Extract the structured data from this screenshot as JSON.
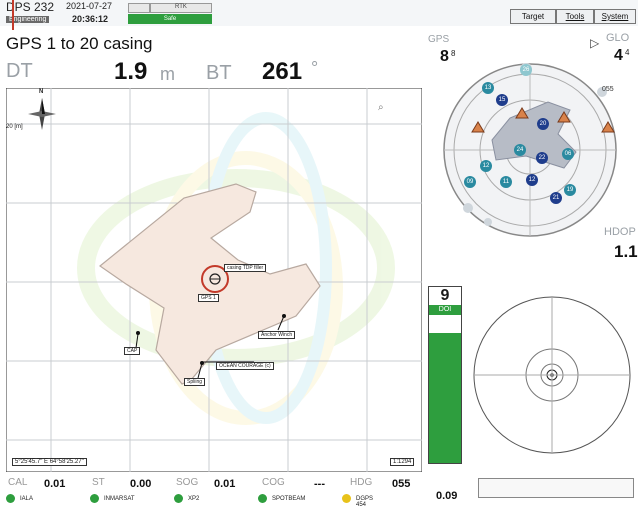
{
  "header": {
    "system_name": "DPS 232",
    "date": "2021-07-27",
    "time": "20:36:12",
    "mode_badge": "Engineering",
    "status_top": "RTK",
    "status_safe": "Safe"
  },
  "menu": {
    "target": "Target",
    "tools": "Tools",
    "system": "System"
  },
  "title": "GPS 1 to 20 casing",
  "readouts": {
    "dt_label": "DT",
    "dt_value": "1.9",
    "dt_unit": "m",
    "bt_label": "BT",
    "bt_value": "261",
    "bt_unit": "°"
  },
  "map": {
    "range_label": "20 [m]",
    "north_label": "N",
    "coords": "5°25'45.7\" E 64°58'25.27\"",
    "scale": "1:1294",
    "zoom_tool": "⌕",
    "labels": {
      "gps": "GPS 1",
      "casing": "casing TDP filler",
      "cap": "CAP",
      "anchor": "Anchor Winch",
      "vessel": "OCEAN COURAGE (c)",
      "spliing": "Spliing"
    }
  },
  "gps_panel": {
    "gps_label": "GPS",
    "gps_count": "8",
    "gps_sup": "8",
    "glo_label": "GLO",
    "glo_count": "4",
    "glo_sup": "4",
    "heading_mark": "055",
    "hdop_label": "HDOP",
    "hdop_value": "1.1",
    "sats": [
      "13",
      "15",
      "20",
      "12",
      "06",
      "24",
      "22",
      "09",
      "26",
      "11",
      "12",
      "19",
      "21"
    ]
  },
  "doi": {
    "value": "9",
    "label": "DOI",
    "level": 0.88,
    "bottom_value": "0.09"
  },
  "bottom": {
    "cal_label": "CAL",
    "cal_value": "0.01",
    "st_label": "ST",
    "st_value": "0.00",
    "sog_label": "SOG",
    "sog_value": "0.01",
    "cog_label": "COG",
    "cog_value": "---",
    "hdg_label": "HDG",
    "hdg_value": "055",
    "status_items": [
      "IALA",
      "INMARSAT",
      "XP2",
      "SPOTBEAM",
      "DGPS 454"
    ]
  },
  "colors": {
    "accent_green": "#2e9e3e",
    "status_yellow": "#e8c21a",
    "range_ring": "#c33a2a"
  }
}
